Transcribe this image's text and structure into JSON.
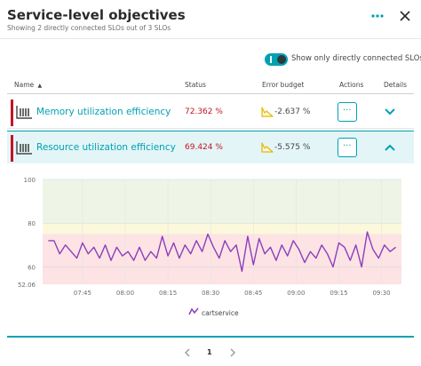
{
  "header": {
    "title": "Service-level objectives",
    "subtitle": "Showing 2 directly connected SLOs out of 3 SLOs",
    "more_icon": "more-horizontal-icon",
    "close_icon": "close-icon"
  },
  "filter": {
    "label": "Show only directly connected SLOs",
    "enabled": true
  },
  "table": {
    "columns": [
      "Name",
      "Status",
      "Error budget",
      "Actions",
      "Details"
    ],
    "sort_indicator": "▲",
    "rows": [
      {
        "name": "Memory utilization efficiency",
        "status": "72.362 %",
        "error_budget": "-2.637 %",
        "action_label": "···",
        "expanded": false
      },
      {
        "name": "Resource utilization efficiency",
        "status": "69.424 %",
        "error_budget": "-5.575 %",
        "action_label": "···",
        "expanded": true
      }
    ]
  },
  "colors": {
    "accent": "#00a1b2",
    "failure": "#c41425",
    "series": "#8b3ebd",
    "zone_good": "#eef5e6",
    "zone_warning": "#fcf8dc",
    "zone_bad": "#fde3e4"
  },
  "chart_data": {
    "type": "line",
    "y_ticks": [
      "100",
      "80",
      "60",
      "52.06"
    ],
    "x_ticks": [
      "07:45",
      "08:00",
      "08:15",
      "08:30",
      "08:45",
      "09:00",
      "09:15",
      "09:30"
    ],
    "ylim": [
      52.06,
      100
    ],
    "thresholds": {
      "warning": 80,
      "target": 75
    },
    "series": [
      {
        "name": "cartservice",
        "x": [
          "07:33",
          "07:35",
          "07:37",
          "07:39",
          "07:41",
          "07:43",
          "07:45",
          "07:47",
          "07:49",
          "07:51",
          "07:53",
          "07:55",
          "07:57",
          "07:59",
          "08:01",
          "08:03",
          "08:05",
          "08:07",
          "08:09",
          "08:11",
          "08:13",
          "08:15",
          "08:17",
          "08:19",
          "08:21",
          "08:23",
          "08:25",
          "08:27",
          "08:29",
          "08:31",
          "08:33",
          "08:35",
          "08:37",
          "08:39",
          "08:41",
          "08:43",
          "08:45",
          "08:47",
          "08:49",
          "08:51",
          "08:53",
          "08:55",
          "08:57",
          "08:59",
          "09:01",
          "09:03",
          "09:05",
          "09:07",
          "09:09",
          "09:11",
          "09:13",
          "09:15",
          "09:17",
          "09:19",
          "09:21",
          "09:23",
          "09:25",
          "09:27",
          "09:29",
          "09:31",
          "09:33",
          "09:35"
        ],
        "y": [
          72,
          72,
          66,
          70,
          67,
          64,
          71,
          66,
          69,
          64,
          70,
          63,
          69,
          65,
          67,
          63,
          69,
          63,
          67,
          64,
          74,
          65,
          71,
          64,
          70,
          66,
          72,
          67,
          75,
          69,
          64,
          72,
          67,
          70,
          58,
          74,
          61,
          73,
          66,
          69,
          63,
          70,
          65,
          72,
          68,
          62,
          67,
          64,
          70,
          66,
          60,
          71,
          69,
          63,
          70,
          60,
          76,
          68,
          64,
          70,
          67,
          69
        ]
      }
    ],
    "legend_position": "bottom"
  },
  "pagination": {
    "current_page": "1",
    "prev_icon": "chevron-left-icon",
    "next_icon": "chevron-right-icon"
  }
}
